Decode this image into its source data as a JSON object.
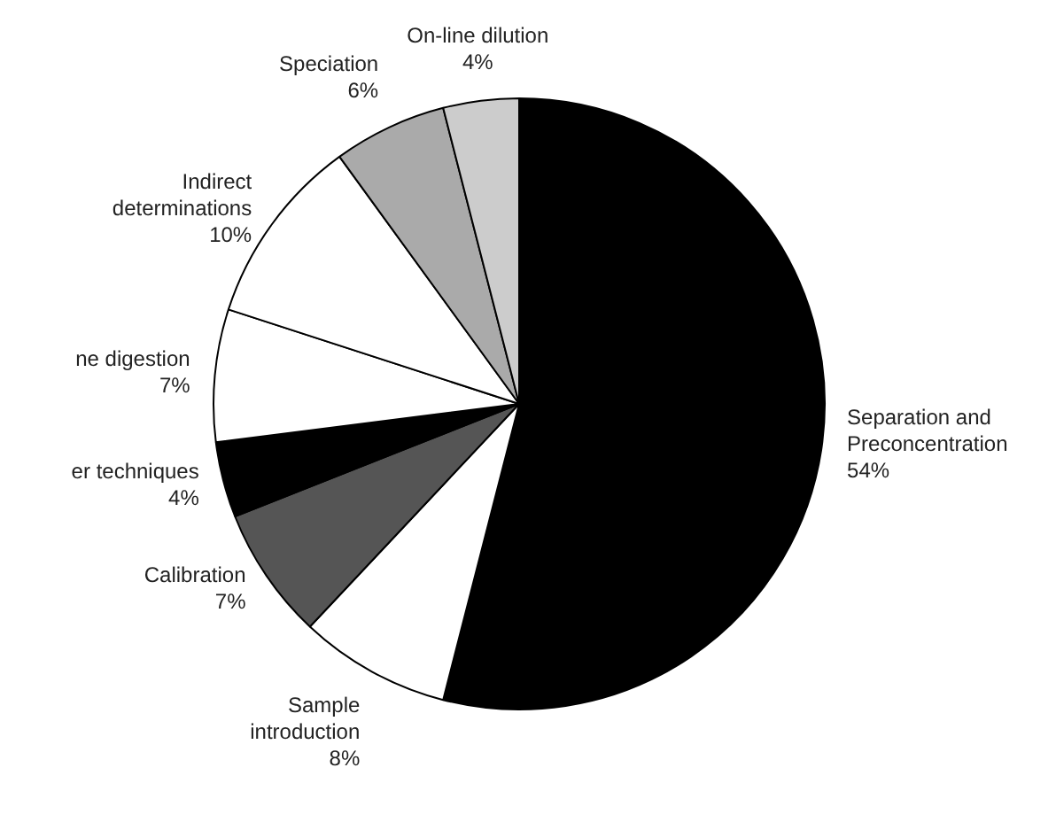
{
  "chart_data": {
    "type": "pie",
    "categories": [
      "Separation and Preconcentration",
      "Sample introduction",
      "Calibration",
      "er techniques",
      "ne digestion",
      "Indirect determinations",
      "Speciation",
      "On-line dilution"
    ],
    "values": [
      54,
      8,
      7,
      4,
      7,
      10,
      6,
      4
    ],
    "colors": [
      "#000000",
      "#ffffff",
      "#555555",
      "#000000",
      "#ffffff",
      "#ffffff",
      "#aaaaaa",
      "#cccccc"
    ],
    "value_labels": [
      "54%",
      "8%",
      "7%",
      "4%",
      "7%",
      "10%",
      "6%",
      "4%"
    ],
    "legend": false
  }
}
